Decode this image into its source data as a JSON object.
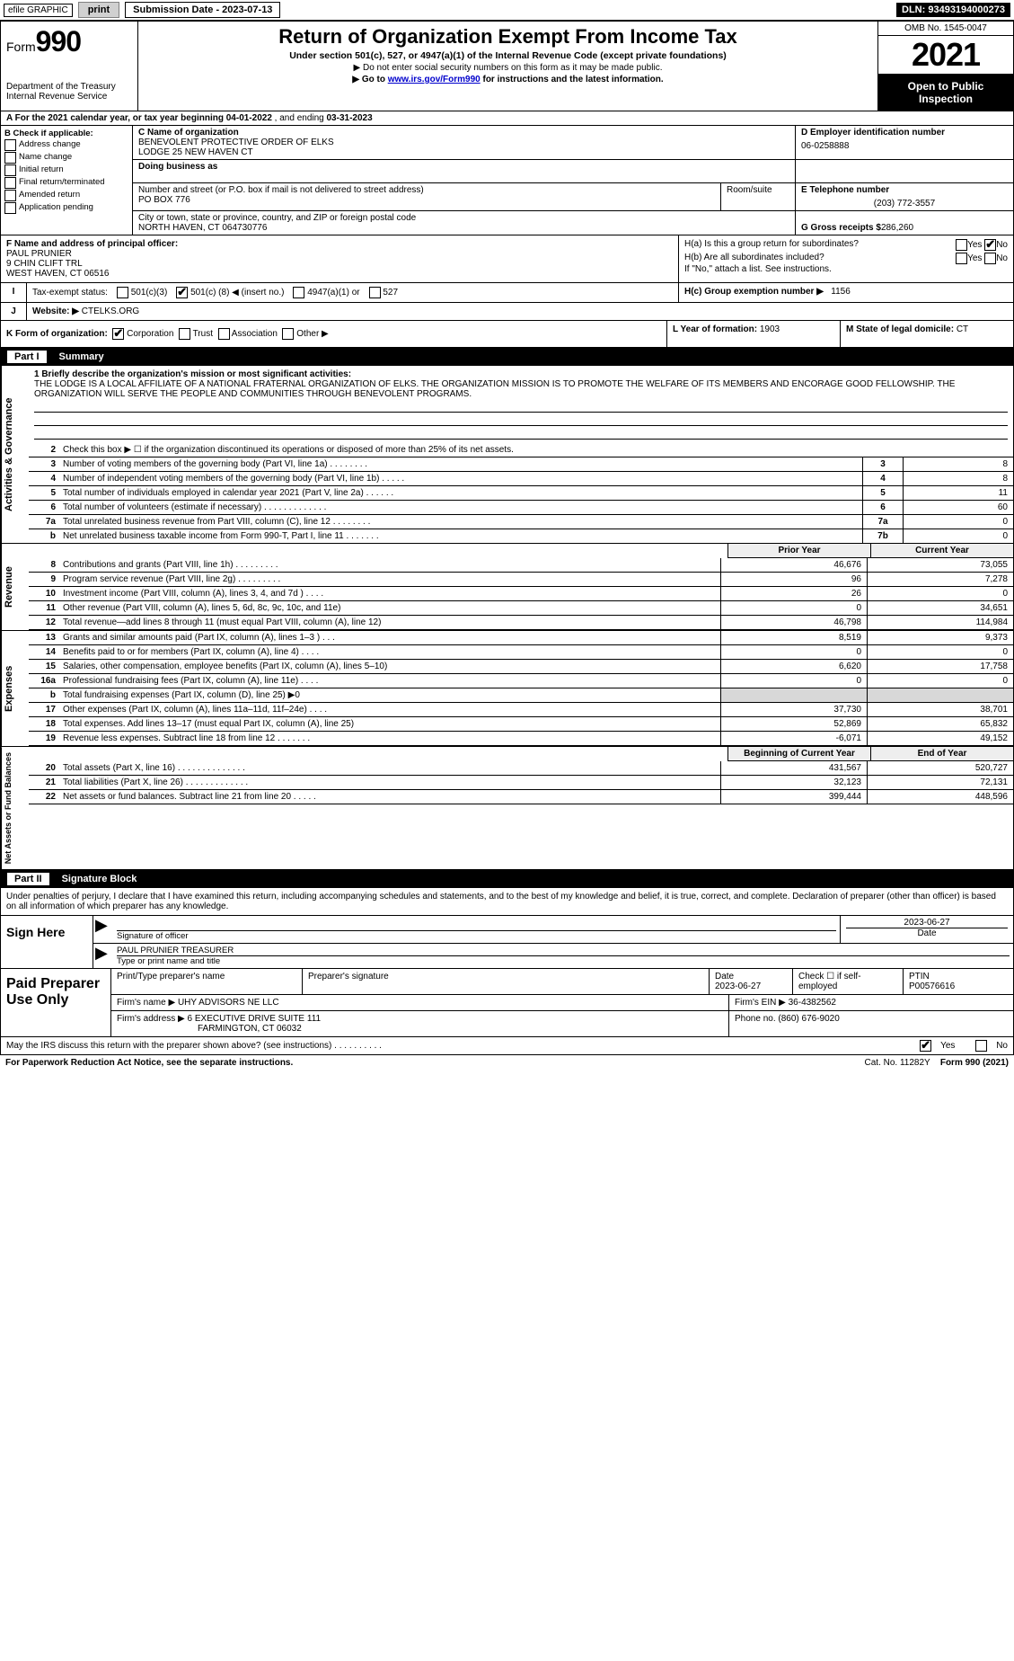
{
  "colors": {
    "text": "#000000",
    "bg": "#ffffff",
    "link": "#0000cc",
    "header_bg": "#000000",
    "header_fg": "#ffffff",
    "shade": "#d8d8d8",
    "btn_bg": "#d0d0d0",
    "btn_border": "#808080"
  },
  "topbar": {
    "efile": "efile GRAPHIC",
    "print": "print",
    "submission_label": "Submission Date - 2023-07-13",
    "dln": "DLN: 93493194000273"
  },
  "header": {
    "form_label": "Form",
    "form_number": "990",
    "dept1": "Department of the Treasury",
    "dept2": "Internal Revenue Service",
    "title": "Return of Organization Exempt From Income Tax",
    "subtitle": "Under section 501(c), 527, or 4947(a)(1) of the Internal Revenue Code (except private foundations)",
    "note1": "▶ Do not enter social security numbers on this form as it may be made public.",
    "note2_pre": "▶ Go to ",
    "note2_link": "www.irs.gov/Form990",
    "note2_post": " for instructions and the latest information.",
    "omb": "OMB No. 1545-0047",
    "year": "2021",
    "open": "Open to Public Inspection"
  },
  "section_a": {
    "text_pre": "A For the 2021 calendar year, or tax year beginning ",
    "begin": "04-01-2022",
    "mid": "   , and ending ",
    "end": "03-31-2023"
  },
  "col_b": {
    "header": "B Check if applicable:",
    "items": [
      "Address change",
      "Name change",
      "Initial return",
      "Final return/terminated",
      "Amended return",
      "Application pending"
    ]
  },
  "col_c": {
    "c_label": "C Name of organization",
    "org1": "BENEVOLENT PROTECTIVE ORDER OF ELKS",
    "org2": "LODGE 25 NEW HAVEN CT",
    "dba_label": "Doing business as",
    "street_label": "Number and street (or P.O. box if mail is not delivered to street address)",
    "room_label": "Room/suite",
    "street": "PO BOX 776",
    "city_label": "City or town, state or province, country, and ZIP or foreign postal code",
    "city": "NORTH HAVEN, CT  064730776"
  },
  "col_d": {
    "d_label": "D Employer identification number",
    "ein": "06-0258888",
    "e_label": "E Telephone number",
    "phone": "(203) 772-3557",
    "g_label": "G Gross receipts $",
    "gross": "286,260"
  },
  "f": {
    "label": "F Name and address of principal officer:",
    "name": "PAUL PRUNIER",
    "addr1": "9 CHIN CLIFT TRL",
    "addr2": "WEST HAVEN, CT  06516"
  },
  "h": {
    "a_label": "H(a)  Is this a group return for subordinates?",
    "yes": "Yes",
    "no": "No",
    "b_label": "H(b)  Are all subordinates included?",
    "b_note": "If \"No,\" attach a list. See instructions.",
    "c_label": "H(c)  Group exemption number ▶",
    "c_val": "1156"
  },
  "tax_status": {
    "i": "I",
    "label": "Tax-exempt status:",
    "o1": "501(c)(3)",
    "o2_pre": "501(c) (",
    "o2_val": "8",
    "o2_post": ") ◀ (insert no.)",
    "o3": "4947(a)(1) or",
    "o4": "527"
  },
  "j": {
    "lbl": "J",
    "label": "Website: ▶",
    "val": "CTELKS.ORG"
  },
  "k": {
    "label": "K Form of organization:",
    "opts": [
      "Corporation",
      "Trust",
      "Association",
      "Other ▶"
    ],
    "l_label": "L Year of formation:",
    "l_val": "1903",
    "m_label": "M State of legal domicile:",
    "m_val": "CT"
  },
  "part1": {
    "label": "Part I",
    "title": "Summary"
  },
  "governance": {
    "tab": "Activities & Governance",
    "line1_label": "1  Briefly describe the organization's mission or most significant activities:",
    "mission": "THE LODGE IS A LOCAL AFFILIATE OF A NATIONAL FRATERNAL ORGANIZATION OF ELKS. THE ORGANIZATION MISSION IS TO PROMOTE THE WELFARE OF ITS MEMBERS AND ENCORAGE GOOD FELLOWSHIP. THE ORGANIZATION WILL SERVE THE PEOPLE AND COMMUNITIES THROUGH BENEVOLENT PROGRAMS.",
    "line2": "Check this box ▶ ☐ if the organization discontinued its operations or disposed of more than 25% of its net assets.",
    "rows": [
      {
        "n": "3",
        "t": "Number of voting members of the governing body (Part VI, line 1a)   .    .    .    .    .    .    .    .",
        "box": "3",
        "v": "8"
      },
      {
        "n": "4",
        "t": "Number of independent voting members of the governing body (Part VI, line 1b)   .    .    .    .    .",
        "box": "4",
        "v": "8"
      },
      {
        "n": "5",
        "t": "Total number of individuals employed in calendar year 2021 (Part V, line 2a)   .    .    .    .    .    .",
        "box": "5",
        "v": "11"
      },
      {
        "n": "6",
        "t": "Total number of volunteers (estimate if necessary)   .    .    .    .    .    .    .    .    .    .    .    .    .",
        "box": "6",
        "v": "60"
      },
      {
        "n": "7a",
        "t": "Total unrelated business revenue from Part VIII, column (C), line 12   .    .    .    .    .    .    .    .",
        "box": "7a",
        "v": "0"
      },
      {
        "n": "b",
        "t": "Net unrelated business taxable income from Form 990-T, Part I, line 11   .    .    .    .    .    .    .",
        "box": "7b",
        "v": "0"
      }
    ]
  },
  "columns": {
    "prior": "Prior Year",
    "current": "Current Year"
  },
  "revenue": {
    "tab": "Revenue",
    "rows": [
      {
        "n": "8",
        "t": "Contributions and grants (Part VIII, line 1h)   .    .    .    .    .    .    .    .    .",
        "c1": "46,676",
        "c2": "73,055"
      },
      {
        "n": "9",
        "t": "Program service revenue (Part VIII, line 2g)   .    .    .    .    .    .    .    .    .",
        "c1": "96",
        "c2": "7,278"
      },
      {
        "n": "10",
        "t": "Investment income (Part VIII, column (A), lines 3, 4, and 7d )   .    .    .    .",
        "c1": "26",
        "c2": "0"
      },
      {
        "n": "11",
        "t": "Other revenue (Part VIII, column (A), lines 5, 6d, 8c, 9c, 10c, and 11e)",
        "c1": "0",
        "c2": "34,651"
      },
      {
        "n": "12",
        "t": "Total revenue—add lines 8 through 11 (must equal Part VIII, column (A), line 12)",
        "c1": "46,798",
        "c2": "114,984"
      }
    ]
  },
  "expenses": {
    "tab": "Expenses",
    "rows": [
      {
        "n": "13",
        "t": "Grants and similar amounts paid (Part IX, column (A), lines 1–3 )  .    .    .",
        "c1": "8,519",
        "c2": "9,373"
      },
      {
        "n": "14",
        "t": "Benefits paid to or for members (Part IX, column (A), line 4)   .    .    .    .",
        "c1": "0",
        "c2": "0"
      },
      {
        "n": "15",
        "t": "Salaries, other compensation, employee benefits (Part IX, column (A), lines 5–10)",
        "c1": "6,620",
        "c2": "17,758"
      },
      {
        "n": "16a",
        "t": "Professional fundraising fees (Part IX, column (A), line 11e)   .    .    .    .",
        "c1": "0",
        "c2": "0"
      },
      {
        "n": "b",
        "t": "Total fundraising expenses (Part IX, column (D), line 25) ▶0",
        "shade": true
      },
      {
        "n": "17",
        "t": "Other expenses (Part IX, column (A), lines 11a–11d, 11f–24e)   .    .    .    .",
        "c1": "37,730",
        "c2": "38,701"
      },
      {
        "n": "18",
        "t": "Total expenses. Add lines 13–17 (must equal Part IX, column (A), line 25)",
        "c1": "52,869",
        "c2": "65,832"
      },
      {
        "n": "19",
        "t": "Revenue less expenses. Subtract line 18 from line 12   .    .    .    .    .    .    .",
        "c1": "-6,071",
        "c2": "49,152"
      }
    ]
  },
  "netassets": {
    "tab": "Net Assets or Fund Balances",
    "header1": "Beginning of Current Year",
    "header2": "End of Year",
    "rows": [
      {
        "n": "20",
        "t": "Total assets (Part X, line 16)  .    .    .    .    .    .    .    .    .    .    .    .    .    .",
        "c1": "431,567",
        "c2": "520,727"
      },
      {
        "n": "21",
        "t": "Total liabilities (Part X, line 26)  .    .    .    .    .    .    .    .    .    .    .    .    .",
        "c1": "32,123",
        "c2": "72,131"
      },
      {
        "n": "22",
        "t": "Net assets or fund balances. Subtract line 21 from line 20   .    .    .    .    .",
        "c1": "399,444",
        "c2": "448,596"
      }
    ]
  },
  "part2": {
    "label": "Part II",
    "title": "Signature Block"
  },
  "sig": {
    "penalty": "Under penalties of perjury, I declare that I have examined this return, including accompanying schedules and statements, and to the best of my knowledge and belief, it is true, correct, and complete. Declaration of preparer (other than officer) is based on all information of which preparer has any knowledge.",
    "sign_here": "Sign Here",
    "sig_officer": "Signature of officer",
    "date": "2023-06-27",
    "date_lbl": "Date",
    "name": "PAUL PRUNIER  TREASURER",
    "name_lbl": "Type or print name and title"
  },
  "paid": {
    "label": "Paid Preparer Use Only",
    "h1": "Print/Type preparer's name",
    "h2": "Preparer's signature",
    "h3": "Date",
    "h4": "Check ☐ if self-employed",
    "h5": "PTIN",
    "date": "2023-06-27",
    "ptin": "P00576616",
    "firm_lbl": "Firm's name   ▶",
    "firm": "UHY ADVISORS NE LLC",
    "ein_lbl": "Firm's EIN ▶",
    "ein": "36-4382562",
    "addr_lbl": "Firm's address ▶",
    "addr1": "6 EXECUTIVE DRIVE SUITE 111",
    "addr2": "FARMINGTON, CT  06032",
    "phone_lbl": "Phone no.",
    "phone": "(860) 676-9020"
  },
  "footer": {
    "q": "May the IRS discuss this return with the preparer shown above? (see instructions)   .    .    .    .    .    .    .    .    .    .",
    "yes": "Yes",
    "no": "No",
    "pra": "For Paperwork Reduction Act Notice, see the separate instructions.",
    "cat": "Cat. No. 11282Y",
    "form": "Form 990 (2021)"
  }
}
